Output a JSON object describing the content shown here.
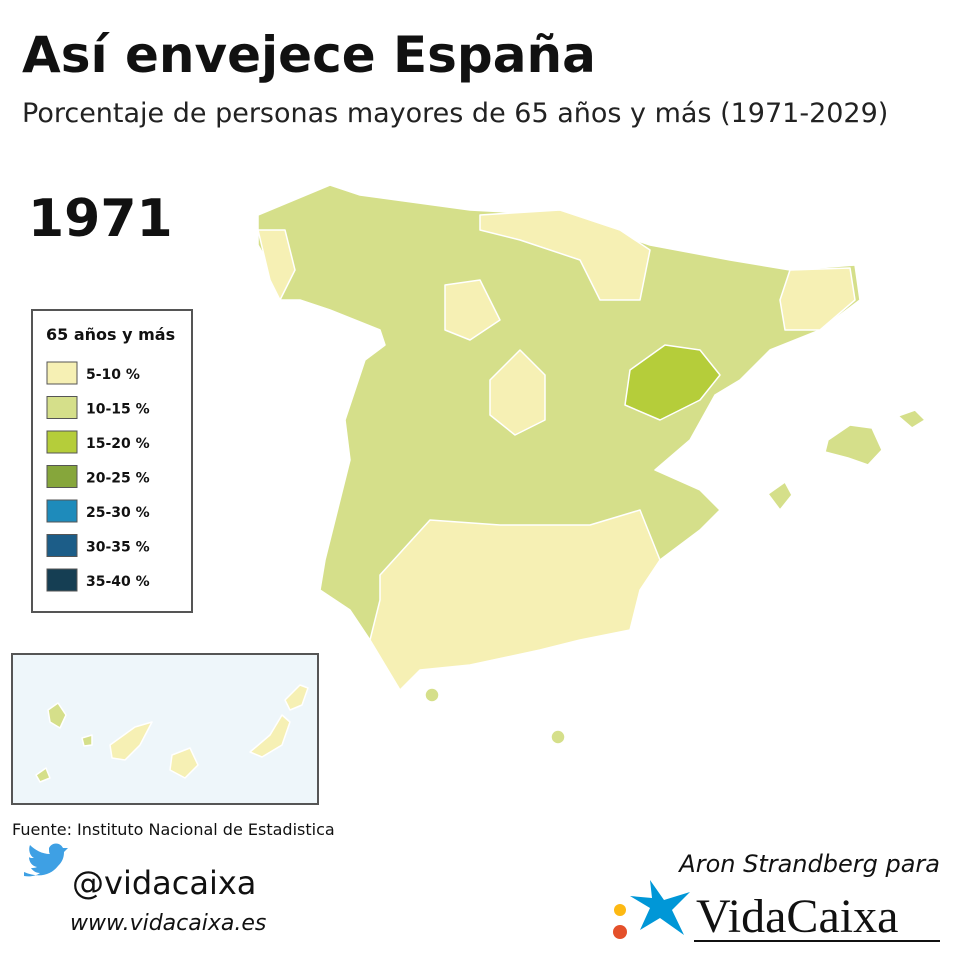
{
  "header": {
    "title": "Así envejece España",
    "subtitle": "Porcentaje de personas mayores de 65 años y más (1971-2029)",
    "year": "1971"
  },
  "legend": {
    "title": "65 años y más",
    "items": [
      {
        "label": "5-10 %",
        "color": "#f6f0b4"
      },
      {
        "label": "10-15 %",
        "color": "#d5df8a"
      },
      {
        "label": "15-20 %",
        "color": "#b5cd3a"
      },
      {
        "label": "20-25 %",
        "color": "#86a63b"
      },
      {
        "label": "25-30 %",
        "color": "#1e8bbb"
      },
      {
        "label": "30-35 %",
        "color": "#1c5d88"
      },
      {
        "label": "35-40 %",
        "color": "#153e53"
      }
    ]
  },
  "footer": {
    "source": "Fuente: Instituto Nacional de Estadistica",
    "twitter": "@vidacaixa",
    "website": "www.vidacaixa.es",
    "credit": "Aron Strandberg para",
    "brand": "VidaCaixa"
  }
}
